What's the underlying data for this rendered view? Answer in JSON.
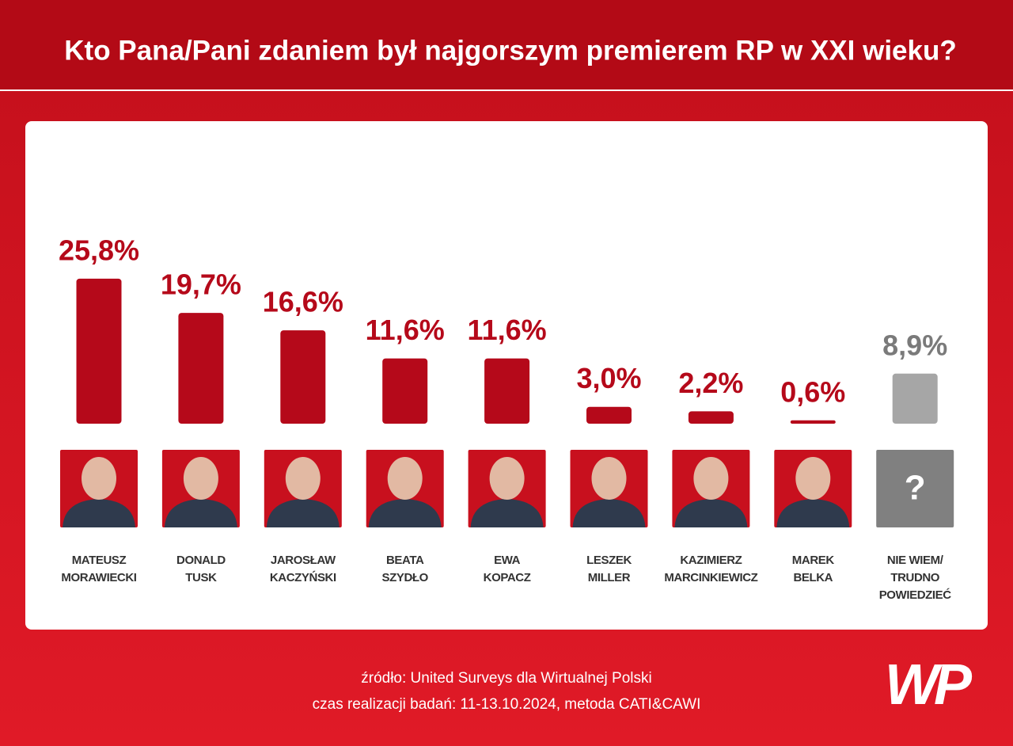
{
  "chart_data": {
    "type": "bar",
    "title": "Kto Pana/Pani zdaniem był najgorszym premierem RP w XXI wieku?",
    "categories": [
      [
        "MATEUSZ",
        "MORAWIECKI"
      ],
      [
        "DONALD",
        "TUSK"
      ],
      [
        "JAROSŁAW",
        "KACZYŃSKI"
      ],
      [
        "BEATA",
        "SZYDŁO"
      ],
      [
        "EWA",
        "KOPACZ"
      ],
      [
        "LESZEK",
        "MILLER"
      ],
      [
        "KAZIMIERZ",
        "MARCINKIEWICZ"
      ],
      [
        "MAREK",
        "BELKA"
      ],
      [
        "NIE WIEM/",
        "TRUDNO",
        "POWIEDZIEĆ"
      ]
    ],
    "values": [
      25.8,
      19.7,
      16.6,
      11.6,
      11.6,
      3.0,
      2.2,
      0.6,
      8.9
    ],
    "value_labels": [
      "25,8%",
      "19,7%",
      "16,6%",
      "11,6%",
      "11,6%",
      "3,0%",
      "2,2%",
      "0,6%",
      "8,9%"
    ],
    "colors": [
      "#b5091a",
      "#b5091a",
      "#b5091a",
      "#b5091a",
      "#b5091a",
      "#b5091a",
      "#b5091a",
      "#b5091a",
      "#a6a6a6"
    ],
    "label_colors": [
      "#b5091a",
      "#b5091a",
      "#b5091a",
      "#b5091a",
      "#b5091a",
      "#b5091a",
      "#b5091a",
      "#b5091a",
      "#7a7a7a"
    ],
    "unknown_icon": "?",
    "source": "źródło: United Surveys dla Wirtualnej Polski",
    "note": "czas realizacji badań: 11-13.10.2024, metoda CATI&CAWI",
    "logo": "WP"
  }
}
